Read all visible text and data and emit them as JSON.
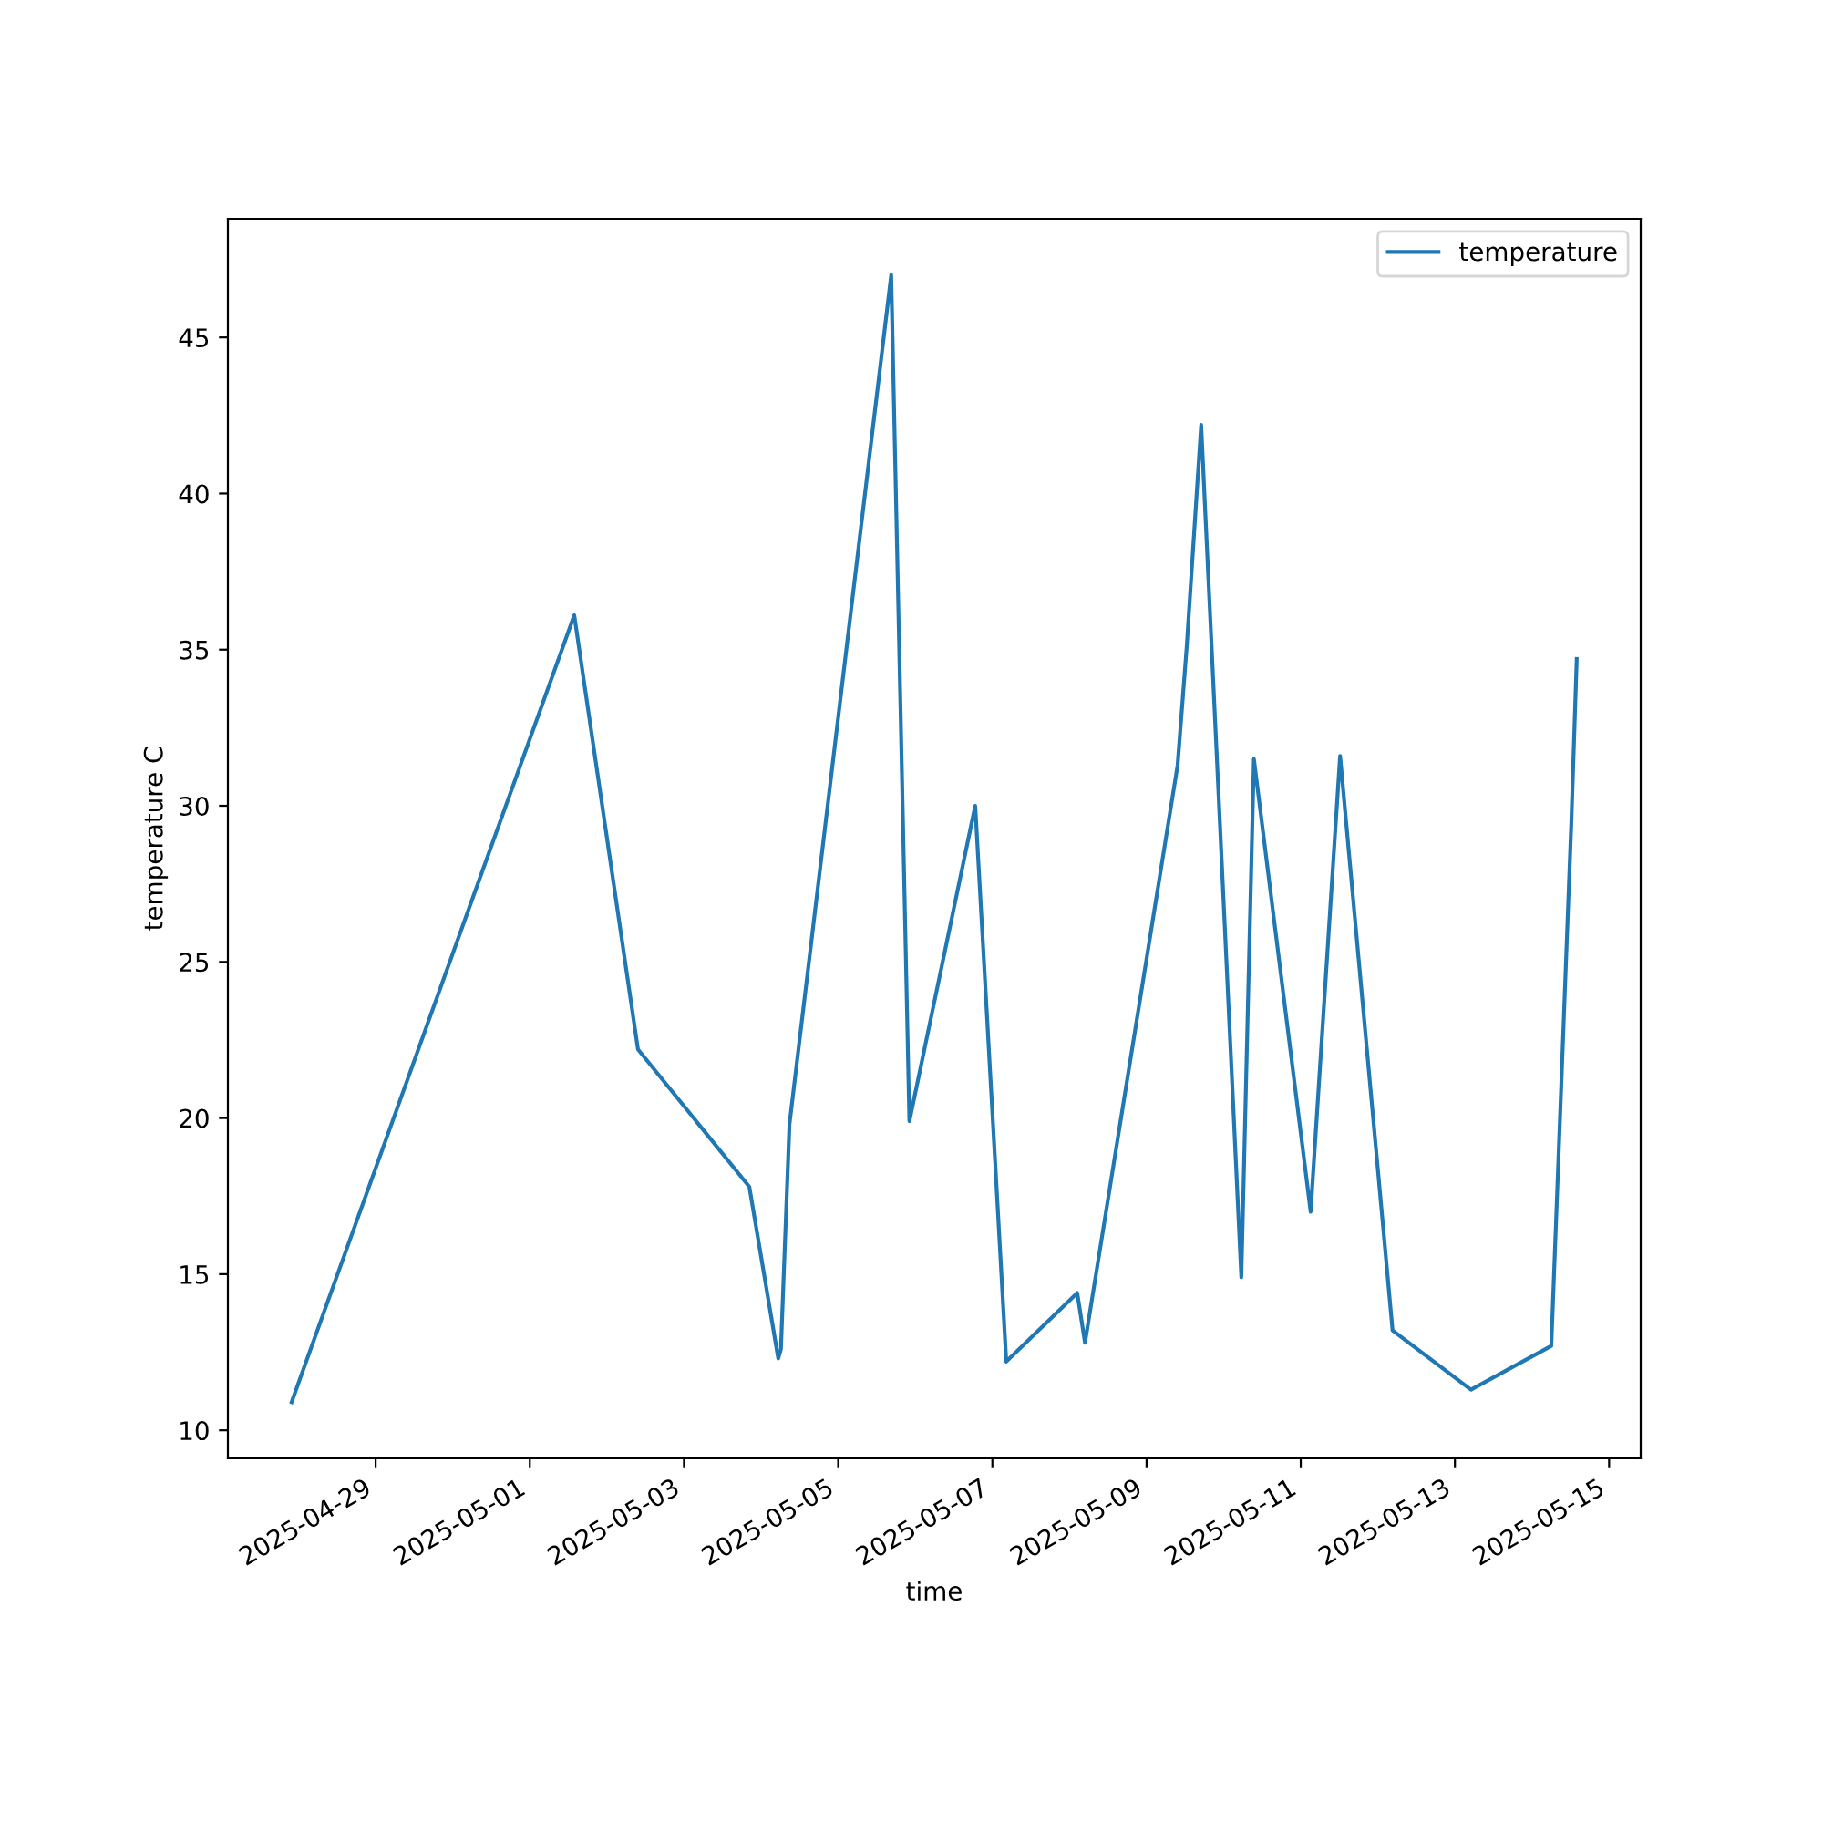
{
  "chart_data": {
    "type": "line",
    "xlabel": "time",
    "ylabel": "temperature C",
    "x": [
      "2025-04-27T21:50",
      "2025-05-01T13:50",
      "2025-05-02T09:40",
      "2025-05-03T20:20",
      "2025-05-04T05:20",
      "2025-05-04T06:10",
      "2025-05-04T08:50",
      "2025-05-05T16:30",
      "2025-05-05T22:10",
      "2025-05-06T18:40",
      "2025-05-07T04:20",
      "2025-05-08T02:25",
      "2025-05-08T04:50",
      "2025-05-09T09:40",
      "2025-05-09T12:30",
      "2025-05-09T17:00",
      "2025-05-10T05:30",
      "2025-05-10T09:25",
      "2025-05-11T03:05",
      "2025-05-11T12:15",
      "2025-05-12T04:35",
      "2025-05-13T05:00",
      "2025-05-14T06:00",
      "2025-05-14T12:15",
      "2025-05-14T13:55"
    ],
    "series": [
      {
        "name": "temperature",
        "color": "#1f77b4",
        "values": [
          10.9,
          36.1,
          22.2,
          17.8,
          12.3,
          12.6,
          19.8,
          47.0,
          19.9,
          30.0,
          12.2,
          14.4,
          12.8,
          31.3,
          35.1,
          42.2,
          14.9,
          31.5,
          17.0,
          31.6,
          13.2,
          11.3,
          12.7,
          29.5,
          34.7
        ]
      }
    ],
    "xlim": [
      "2025-04-27T02:00",
      "2025-05-15T09:50"
    ],
    "xticks": [
      "2025-04-29",
      "2025-05-01",
      "2025-05-03",
      "2025-05-05",
      "2025-05-07",
      "2025-05-09",
      "2025-05-11",
      "2025-05-13",
      "2025-05-15"
    ],
    "ylim": [
      9.1,
      48.8
    ],
    "yticks": [
      10,
      15,
      20,
      25,
      30,
      35,
      40,
      45
    ],
    "legend": "top right",
    "grid": false,
    "marker": "none",
    "line_style": "solid"
  }
}
